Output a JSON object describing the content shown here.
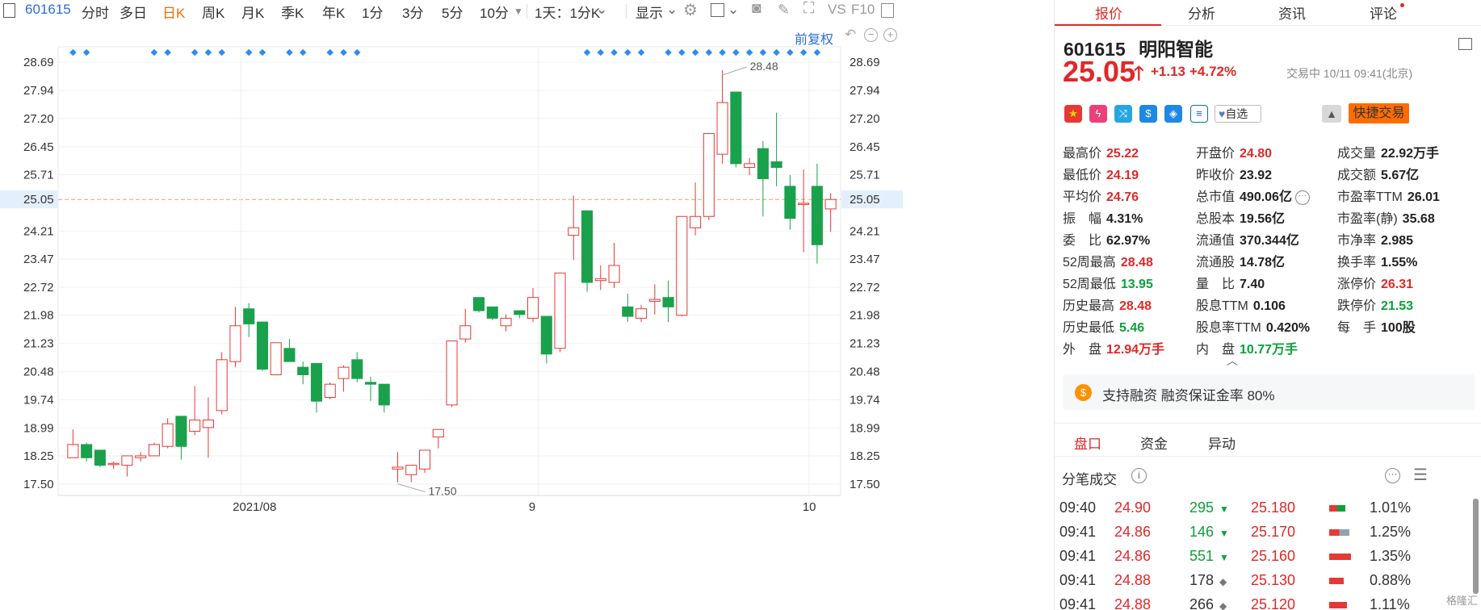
{
  "toolbar": {
    "code": "601615",
    "items": [
      "分时",
      "多日",
      "日K",
      "周K",
      "月K",
      "季K",
      "年K",
      "1分",
      "3分",
      "5分",
      "10分",
      "1天：1分K",
      "显示",
      "VS",
      "F10"
    ]
  },
  "chart": {
    "fq": "前复权",
    "y_ticks": [
      "28.69",
      "27.94",
      "27.20",
      "26.45",
      "25.71",
      "25.05",
      "24.21",
      "23.47",
      "22.72",
      "21.98",
      "21.23",
      "20.48",
      "19.74",
      "18.99",
      "18.25",
      "17.50"
    ],
    "x_ticks": [
      "2021/08",
      "9",
      "10"
    ],
    "max_label": "28.48",
    "min_label": "17.50",
    "current": "25.05"
  },
  "chart_data": {
    "type": "candlestick",
    "ylim": [
      17.2,
      29.1
    ],
    "x_labels": [
      "2021/08",
      "9",
      "10"
    ],
    "candles": [
      [
        18.2,
        18.55,
        18.2,
        18.95
      ],
      [
        18.55,
        18.2,
        18.1,
        18.6
      ],
      [
        18.4,
        18.0,
        17.95,
        18.4
      ],
      [
        18.05,
        18.05,
        17.9,
        18.1
      ],
      [
        18.0,
        18.25,
        17.7,
        18.25
      ],
      [
        18.2,
        18.25,
        18.1,
        18.35
      ],
      [
        18.25,
        18.55,
        18.25,
        18.6
      ],
      [
        18.5,
        19.1,
        18.45,
        19.25
      ],
      [
        19.3,
        18.5,
        18.15,
        19.3
      ],
      [
        18.9,
        19.2,
        18.8,
        20.1
      ],
      [
        19.0,
        19.2,
        18.2,
        19.8
      ],
      [
        19.45,
        20.8,
        19.35,
        21.0
      ],
      [
        20.75,
        21.7,
        20.6,
        22.2
      ],
      [
        22.15,
        21.75,
        21.4,
        22.3
      ],
      [
        21.8,
        20.55,
        20.5,
        21.8
      ],
      [
        20.4,
        21.25,
        20.4,
        21.25
      ],
      [
        21.1,
        20.75,
        20.75,
        21.35
      ],
      [
        20.6,
        20.4,
        20.15,
        20.75
      ],
      [
        20.7,
        19.7,
        19.4,
        20.7
      ],
      [
        19.8,
        20.15,
        19.75,
        20.2
      ],
      [
        20.3,
        20.6,
        19.95,
        20.65
      ],
      [
        20.8,
        20.3,
        20.2,
        21.0
      ],
      [
        20.2,
        20.15,
        19.7,
        20.35
      ],
      [
        20.15,
        19.6,
        19.4,
        20.15
      ],
      [
        17.9,
        17.95,
        17.55,
        18.35
      ],
      [
        17.75,
        18.0,
        17.55,
        18.0
      ],
      [
        17.9,
        18.4,
        17.8,
        18.4
      ],
      [
        18.75,
        18.95,
        18.45,
        18.95
      ],
      [
        19.6,
        21.3,
        19.55,
        21.3
      ],
      [
        21.35,
        21.7,
        21.25,
        22.15
      ],
      [
        22.45,
        22.1,
        22.05,
        22.45
      ],
      [
        22.2,
        21.9,
        21.85,
        22.2
      ],
      [
        21.7,
        21.9,
        21.55,
        22.0
      ],
      [
        22.1,
        22.0,
        21.9,
        22.1
      ],
      [
        21.9,
        22.45,
        21.8,
        22.7
      ],
      [
        21.95,
        20.95,
        20.7,
        21.95
      ],
      [
        21.1,
        23.1,
        21.0,
        23.1
      ],
      [
        24.1,
        24.3,
        23.45,
        25.15
      ],
      [
        24.75,
        22.85,
        22.6,
        24.75
      ],
      [
        22.9,
        22.95,
        22.65,
        23.3
      ],
      [
        22.85,
        23.3,
        22.7,
        23.9
      ],
      [
        22.2,
        21.95,
        21.8,
        22.55
      ],
      [
        21.9,
        22.15,
        21.8,
        22.25
      ],
      [
        22.35,
        22.4,
        22.0,
        22.8
      ],
      [
        22.45,
        22.2,
        21.8,
        22.9
      ],
      [
        21.98,
        24.6,
        21.95,
        24.6
      ],
      [
        24.3,
        24.6,
        24.1,
        25.5
      ],
      [
        24.6,
        26.8,
        24.5,
        26.8
      ],
      [
        26.25,
        27.62,
        26.0,
        28.48
      ],
      [
        27.9,
        26.0,
        25.9,
        27.9
      ],
      [
        25.9,
        26.0,
        25.7,
        26.15
      ],
      [
        26.4,
        25.6,
        24.6,
        26.6
      ],
      [
        26.05,
        25.9,
        25.4,
        27.35
      ],
      [
        25.4,
        24.55,
        24.25,
        25.7
      ],
      [
        24.95,
        24.95,
        23.65,
        25.85
      ],
      [
        25.4,
        23.85,
        23.35,
        26.0
      ],
      [
        24.8,
        25.05,
        24.19,
        25.22
      ]
    ]
  },
  "right": {
    "tabs": [
      "报价",
      "分析",
      "资讯",
      "评论"
    ],
    "code": "601615",
    "name": "明阳智能",
    "price": "25.05",
    "change": "+1.13",
    "change_pct": "+4.72%",
    "status": "交易中 10/11 09:41(北京)",
    "add_watch": "自选",
    "quick_trade": "快捷交易",
    "icons": [
      "cn-flag-icon",
      "lightning-icon",
      "shuffle-icon",
      "dollar-icon",
      "tag-icon",
      "doc-icon"
    ],
    "quotes": [
      [
        [
          "最高价",
          "25.22",
          "red"
        ],
        [
          "开盘价",
          "24.80",
          "red"
        ],
        [
          "成交量",
          "22.92万手",
          "dark"
        ]
      ],
      [
        [
          "最低价",
          "24.19",
          "red"
        ],
        [
          "昨收价",
          "23.92",
          "dark"
        ],
        [
          "成交额",
          "5.67亿",
          "dark"
        ]
      ],
      [
        [
          "平均价",
          "24.76",
          "red"
        ],
        [
          "总市值",
          "490.06亿",
          "dark"
        ],
        [
          "市盈率TTM",
          "26.01",
          "dark"
        ]
      ],
      [
        [
          "振　幅",
          "4.31%",
          "dark"
        ],
        [
          "总股本",
          "19.56亿",
          "dark"
        ],
        [
          "市盈率(静)",
          "35.68",
          "dark"
        ]
      ],
      [
        [
          "委　比",
          "62.97%",
          "dark"
        ],
        [
          "流通值",
          "370.344亿",
          "dark"
        ],
        [
          "市净率",
          "2.985",
          "dark"
        ]
      ],
      [
        [
          "52周最高",
          "28.48",
          "red"
        ],
        [
          "流通股",
          "14.78亿",
          "dark"
        ],
        [
          "换手率",
          "1.55%",
          "dark"
        ]
      ],
      [
        [
          "52周最低",
          "13.95",
          "green"
        ],
        [
          "量　比",
          "7.40",
          "dark"
        ],
        [
          "涨停价",
          "26.31",
          "red"
        ]
      ],
      [
        [
          "历史最高",
          "28.48",
          "red"
        ],
        [
          "股息TTM",
          "0.106",
          "dark"
        ],
        [
          "跌停价",
          "21.53",
          "green"
        ]
      ],
      [
        [
          "历史最低",
          "5.46",
          "green"
        ],
        [
          "股息率TTM",
          "0.420%",
          "dark"
        ],
        [
          "每　手",
          "100股",
          "dark"
        ]
      ],
      [
        [
          "外　盘",
          "12.94万手",
          "red"
        ],
        [
          "内　盘",
          "10.77万手",
          "green"
        ]
      ]
    ],
    "margin_notice": "支持融资 融资保证金率 80%",
    "sub_tabs": [
      "盘口",
      "资金",
      "异动"
    ],
    "ticks_title": "分笔成交",
    "ticks": [
      [
        "09:40",
        "24.90",
        "295",
        "down",
        "25.180",
        "1.01%",
        1.01
      ],
      [
        "09:41",
        "24.86",
        "146",
        "down",
        "25.170",
        "1.25%",
        1.25
      ],
      [
        "09:41",
        "24.86",
        "551",
        "down",
        "25.160",
        "1.35%",
        1.35
      ],
      [
        "09:41",
        "24.88",
        "178",
        "flat",
        "25.130",
        "0.88%",
        0.88
      ],
      [
        "09:41",
        "24.88",
        "266",
        "flat",
        "25.120",
        "1.11%",
        1.11
      ]
    ],
    "watermark": "格隆汇"
  }
}
